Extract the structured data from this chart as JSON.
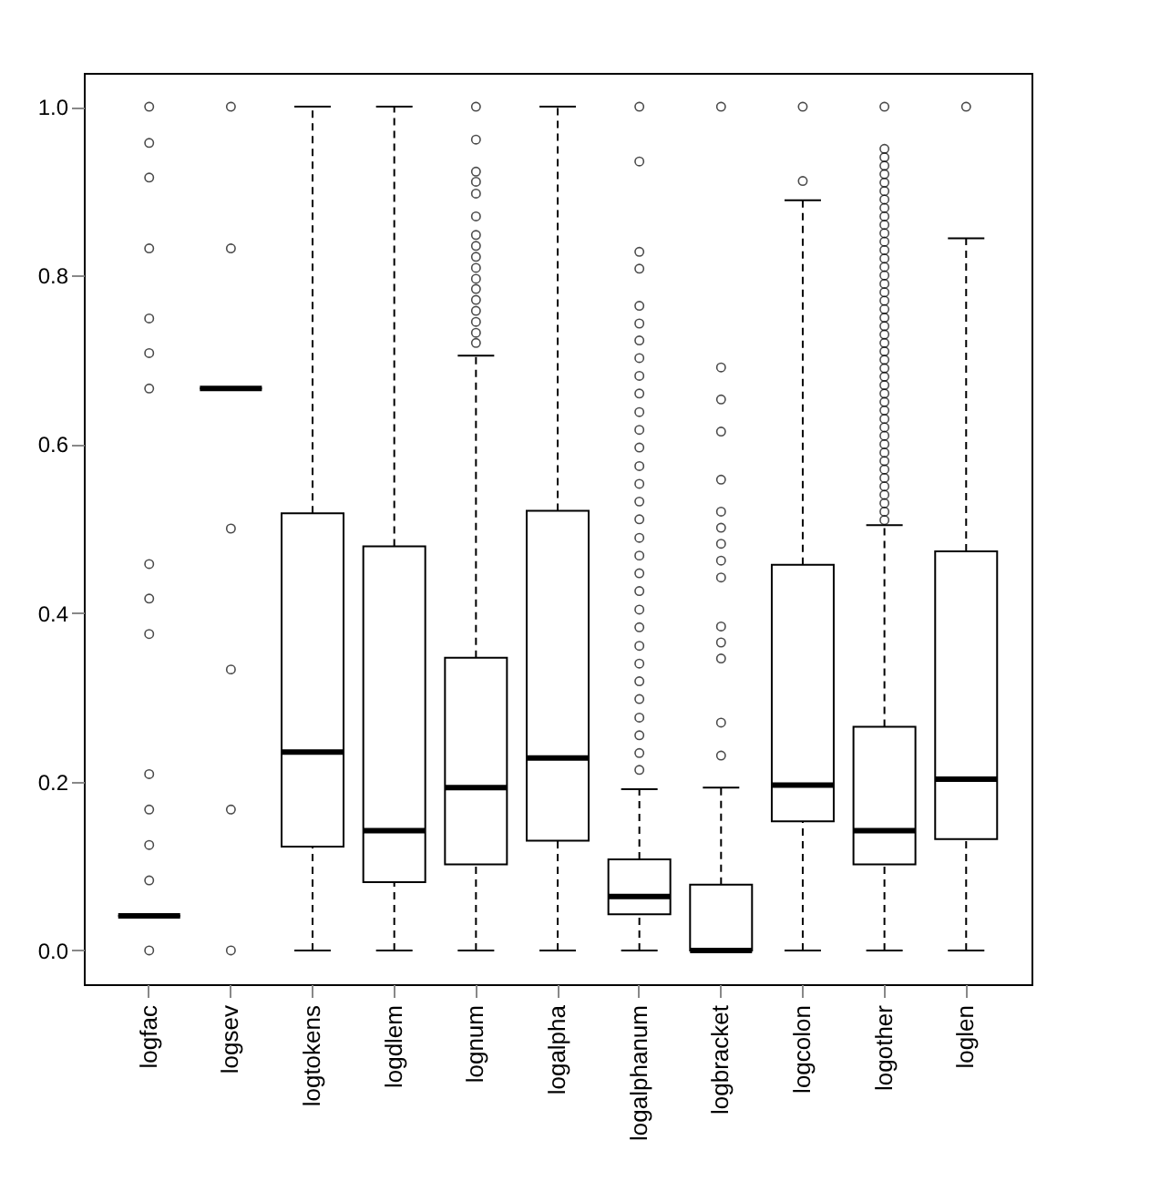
{
  "chart_data": {
    "type": "box",
    "categories": [
      "logfac",
      "logsev",
      "logtokens",
      "logdlem",
      "lognum",
      "logalpha",
      "logalphanum",
      "logbracket",
      "logcolon",
      "logother",
      "loglen"
    ],
    "boxes": [
      {
        "low": 0.041,
        "q1": 0.041,
        "median": 0.041,
        "q3": 0.041,
        "high": 0.041,
        "outliers": [
          0.0,
          0.083,
          0.125,
          0.167,
          0.209,
          0.375,
          0.417,
          0.458,
          0.666,
          0.708,
          0.749,
          0.832,
          0.916,
          0.957,
          1.0
        ]
      },
      {
        "low": 0.666,
        "q1": 0.666,
        "median": 0.666,
        "q3": 0.666,
        "high": 0.666,
        "outliers": [
          0.0,
          0.167,
          0.333,
          0.5,
          0.832,
          1.0
        ]
      },
      {
        "low": 0.0,
        "q1": 0.123,
        "median": 0.235,
        "q3": 0.518,
        "high": 1.0
      },
      {
        "low": 0.0,
        "q1": 0.081,
        "median": 0.142,
        "q3": 0.479,
        "high": 1.0
      },
      {
        "low": 0.0,
        "q1": 0.102,
        "median": 0.193,
        "q3": 0.347,
        "high": 0.705,
        "outliers": [
          0.72,
          0.732,
          0.745,
          0.758,
          0.771,
          0.784,
          0.796,
          0.809,
          0.822,
          0.835,
          0.848,
          0.87,
          0.897,
          0.911,
          0.923,
          0.961,
          1.0
        ]
      },
      {
        "low": 0.0,
        "q1": 0.13,
        "median": 0.228,
        "q3": 0.521,
        "high": 1.0
      },
      {
        "low": 0.0,
        "q1": 0.043,
        "median": 0.064,
        "q3": 0.108,
        "high": 0.191,
        "outliers": [
          0.214,
          0.234,
          0.255,
          0.276,
          0.298,
          0.319,
          0.34,
          0.361,
          0.383,
          0.404,
          0.426,
          0.447,
          0.468,
          0.489,
          0.511,
          0.532,
          0.553,
          0.574,
          0.596,
          0.617,
          0.638,
          0.66,
          0.681,
          0.702,
          0.723,
          0.743,
          0.764,
          0.808,
          0.828,
          0.935,
          1.0
        ]
      },
      {
        "low": 0.0,
        "q1": 0.0,
        "median": 0.0,
        "q3": 0.078,
        "high": 0.193,
        "outliers": [
          0.231,
          0.27,
          0.346,
          0.365,
          0.384,
          0.442,
          0.462,
          0.482,
          0.501,
          0.52,
          0.558,
          0.615,
          0.653,
          0.691,
          1.0
        ]
      },
      {
        "low": 0.0,
        "q1": 0.153,
        "median": 0.196,
        "q3": 0.457,
        "high": 0.889,
        "outliers": [
          0.912,
          1.0
        ]
      },
      {
        "low": 0.0,
        "q1": 0.102,
        "median": 0.142,
        "q3": 0.265,
        "high": 0.504,
        "outliers": [
          0.51,
          0.52,
          0.53,
          0.54,
          0.55,
          0.56,
          0.57,
          0.58,
          0.59,
          0.6,
          0.61,
          0.62,
          0.63,
          0.64,
          0.65,
          0.66,
          0.67,
          0.68,
          0.69,
          0.7,
          0.71,
          0.72,
          0.73,
          0.74,
          0.75,
          0.76,
          0.77,
          0.78,
          0.79,
          0.8,
          0.81,
          0.82,
          0.83,
          0.84,
          0.85,
          0.86,
          0.87,
          0.88,
          0.89,
          0.9,
          0.91,
          0.92,
          0.93,
          0.94,
          0.95,
          1.0
        ]
      },
      {
        "low": 0.0,
        "q1": 0.132,
        "median": 0.203,
        "q3": 0.473,
        "high": 0.844,
        "outliers": [
          1.0
        ]
      }
    ],
    "ylim": [
      -0.04,
      1.04
    ],
    "yticks": [
      {
        "value": 0,
        "label": "0.0"
      },
      0.2,
      0.4,
      0.6,
      0.8,
      {
        "value": 1,
        "label": "1.0"
      }
    ],
    "grid": false,
    "marker": "circle"
  }
}
